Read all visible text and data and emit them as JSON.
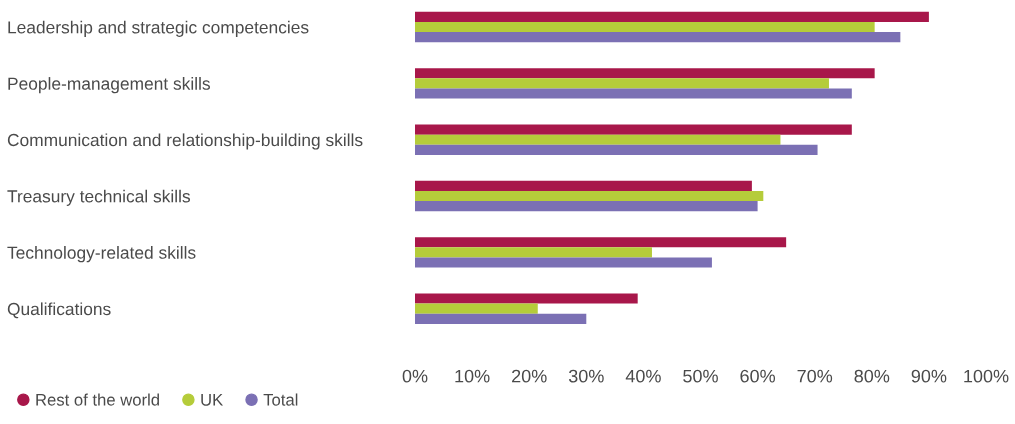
{
  "chart_data": {
    "type": "bar",
    "orientation": "horizontal",
    "categories": [
      "Leadership and strategic competencies",
      "People-management skills",
      "Communication and relationship-building skills",
      "Treasury technical skills",
      "Technology-related skills",
      "Qualifications"
    ],
    "series": [
      {
        "name": "Rest of the world",
        "color": "#a8174a",
        "values": [
          90,
          80.5,
          76.5,
          59,
          65,
          39
        ]
      },
      {
        "name": "UK",
        "color": "#b5cc3a",
        "values": [
          80.5,
          72.5,
          64,
          61,
          41.5,
          21.5
        ]
      },
      {
        "name": "Total",
        "color": "#7b70b4",
        "values": [
          85,
          76.5,
          70.5,
          60,
          52,
          30
        ]
      }
    ],
    "xlim": [
      0,
      100
    ],
    "xticks": [
      {
        "value": 0,
        "label": "0%"
      },
      {
        "value": 10,
        "label": "10%"
      },
      {
        "value": 20,
        "label": "20%"
      },
      {
        "value": 30,
        "label": "30%"
      },
      {
        "value": 40,
        "label": "40%"
      },
      {
        "value": 50,
        "label": "50%"
      },
      {
        "value": 60,
        "label": "60%"
      },
      {
        "value": 70,
        "label": "70%"
      },
      {
        "value": 80,
        "label": "80%"
      },
      {
        "value": 90,
        "label": "90%"
      },
      {
        "value": 100,
        "label": "100%"
      }
    ],
    "grid": false,
    "legend": "bottom left",
    "marker": "circle"
  }
}
